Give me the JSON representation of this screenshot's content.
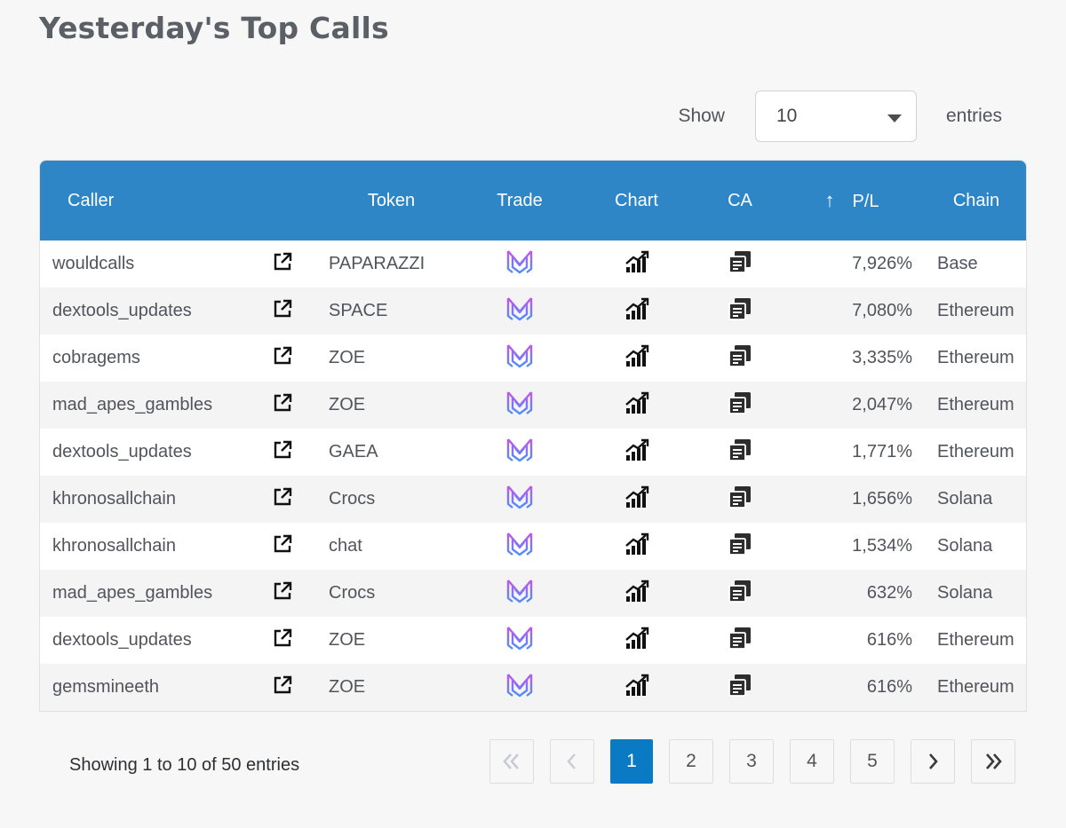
{
  "page": {
    "title": "Yesterday's Top Calls"
  },
  "length_control": {
    "show_label": "Show",
    "selected": "10",
    "entries_label": "entries"
  },
  "table": {
    "headers": {
      "caller": "Caller",
      "token": "Token",
      "trade": "Trade",
      "chart": "Chart",
      "ca": "CA",
      "sort_arrow": "↑",
      "pl": "P/L",
      "chain": "Chain"
    },
    "rows": [
      {
        "caller": "wouldcalls",
        "token": "PAPARAZZI",
        "pl": "7,926%",
        "chain": "Base"
      },
      {
        "caller": "dextools_updates",
        "token": "SPACE",
        "pl": "7,080%",
        "chain": "Ethereum"
      },
      {
        "caller": "cobragems",
        "token": "ZOE",
        "pl": "3,335%",
        "chain": "Ethereum"
      },
      {
        "caller": "mad_apes_gambles",
        "token": "ZOE",
        "pl": "2,047%",
        "chain": "Ethereum"
      },
      {
        "caller": "dextools_updates",
        "token": "GAEA",
        "pl": "1,771%",
        "chain": "Ethereum"
      },
      {
        "caller": "khronosallchain",
        "token": "Crocs",
        "pl": "1,656%",
        "chain": "Solana"
      },
      {
        "caller": "khronosallchain",
        "token": "chat",
        "pl": "1,534%",
        "chain": "Solana"
      },
      {
        "caller": "mad_apes_gambles",
        "token": "Crocs",
        "pl": "632%",
        "chain": "Solana"
      },
      {
        "caller": "dextools_updates",
        "token": "ZOE",
        "pl": "616%",
        "chain": "Ethereum"
      },
      {
        "caller": "gemsmineeth",
        "token": "ZOE",
        "pl": "616%",
        "chain": "Ethereum"
      }
    ],
    "row_icons": {
      "open": "external-link-icon",
      "trade": "trade-logo-icon",
      "chart": "chart-growth-icon",
      "ca": "copy-icon"
    },
    "colors": {
      "header_bg": "#2e86c6",
      "trade_logo_top": "#c157e8",
      "trade_logo_bottom": "#4f8ff7"
    }
  },
  "footer": {
    "info": "Showing 1 to 10 of 50 entries"
  },
  "pagination": {
    "pages": [
      "1",
      "2",
      "3",
      "4",
      "5"
    ],
    "active_page": "1",
    "icons": {
      "first": "double-chevron-left-icon",
      "prev": "chevron-left-icon",
      "next": "chevron-right-icon",
      "last": "double-chevron-right-icon"
    },
    "active_color": "#0a7ac4"
  }
}
